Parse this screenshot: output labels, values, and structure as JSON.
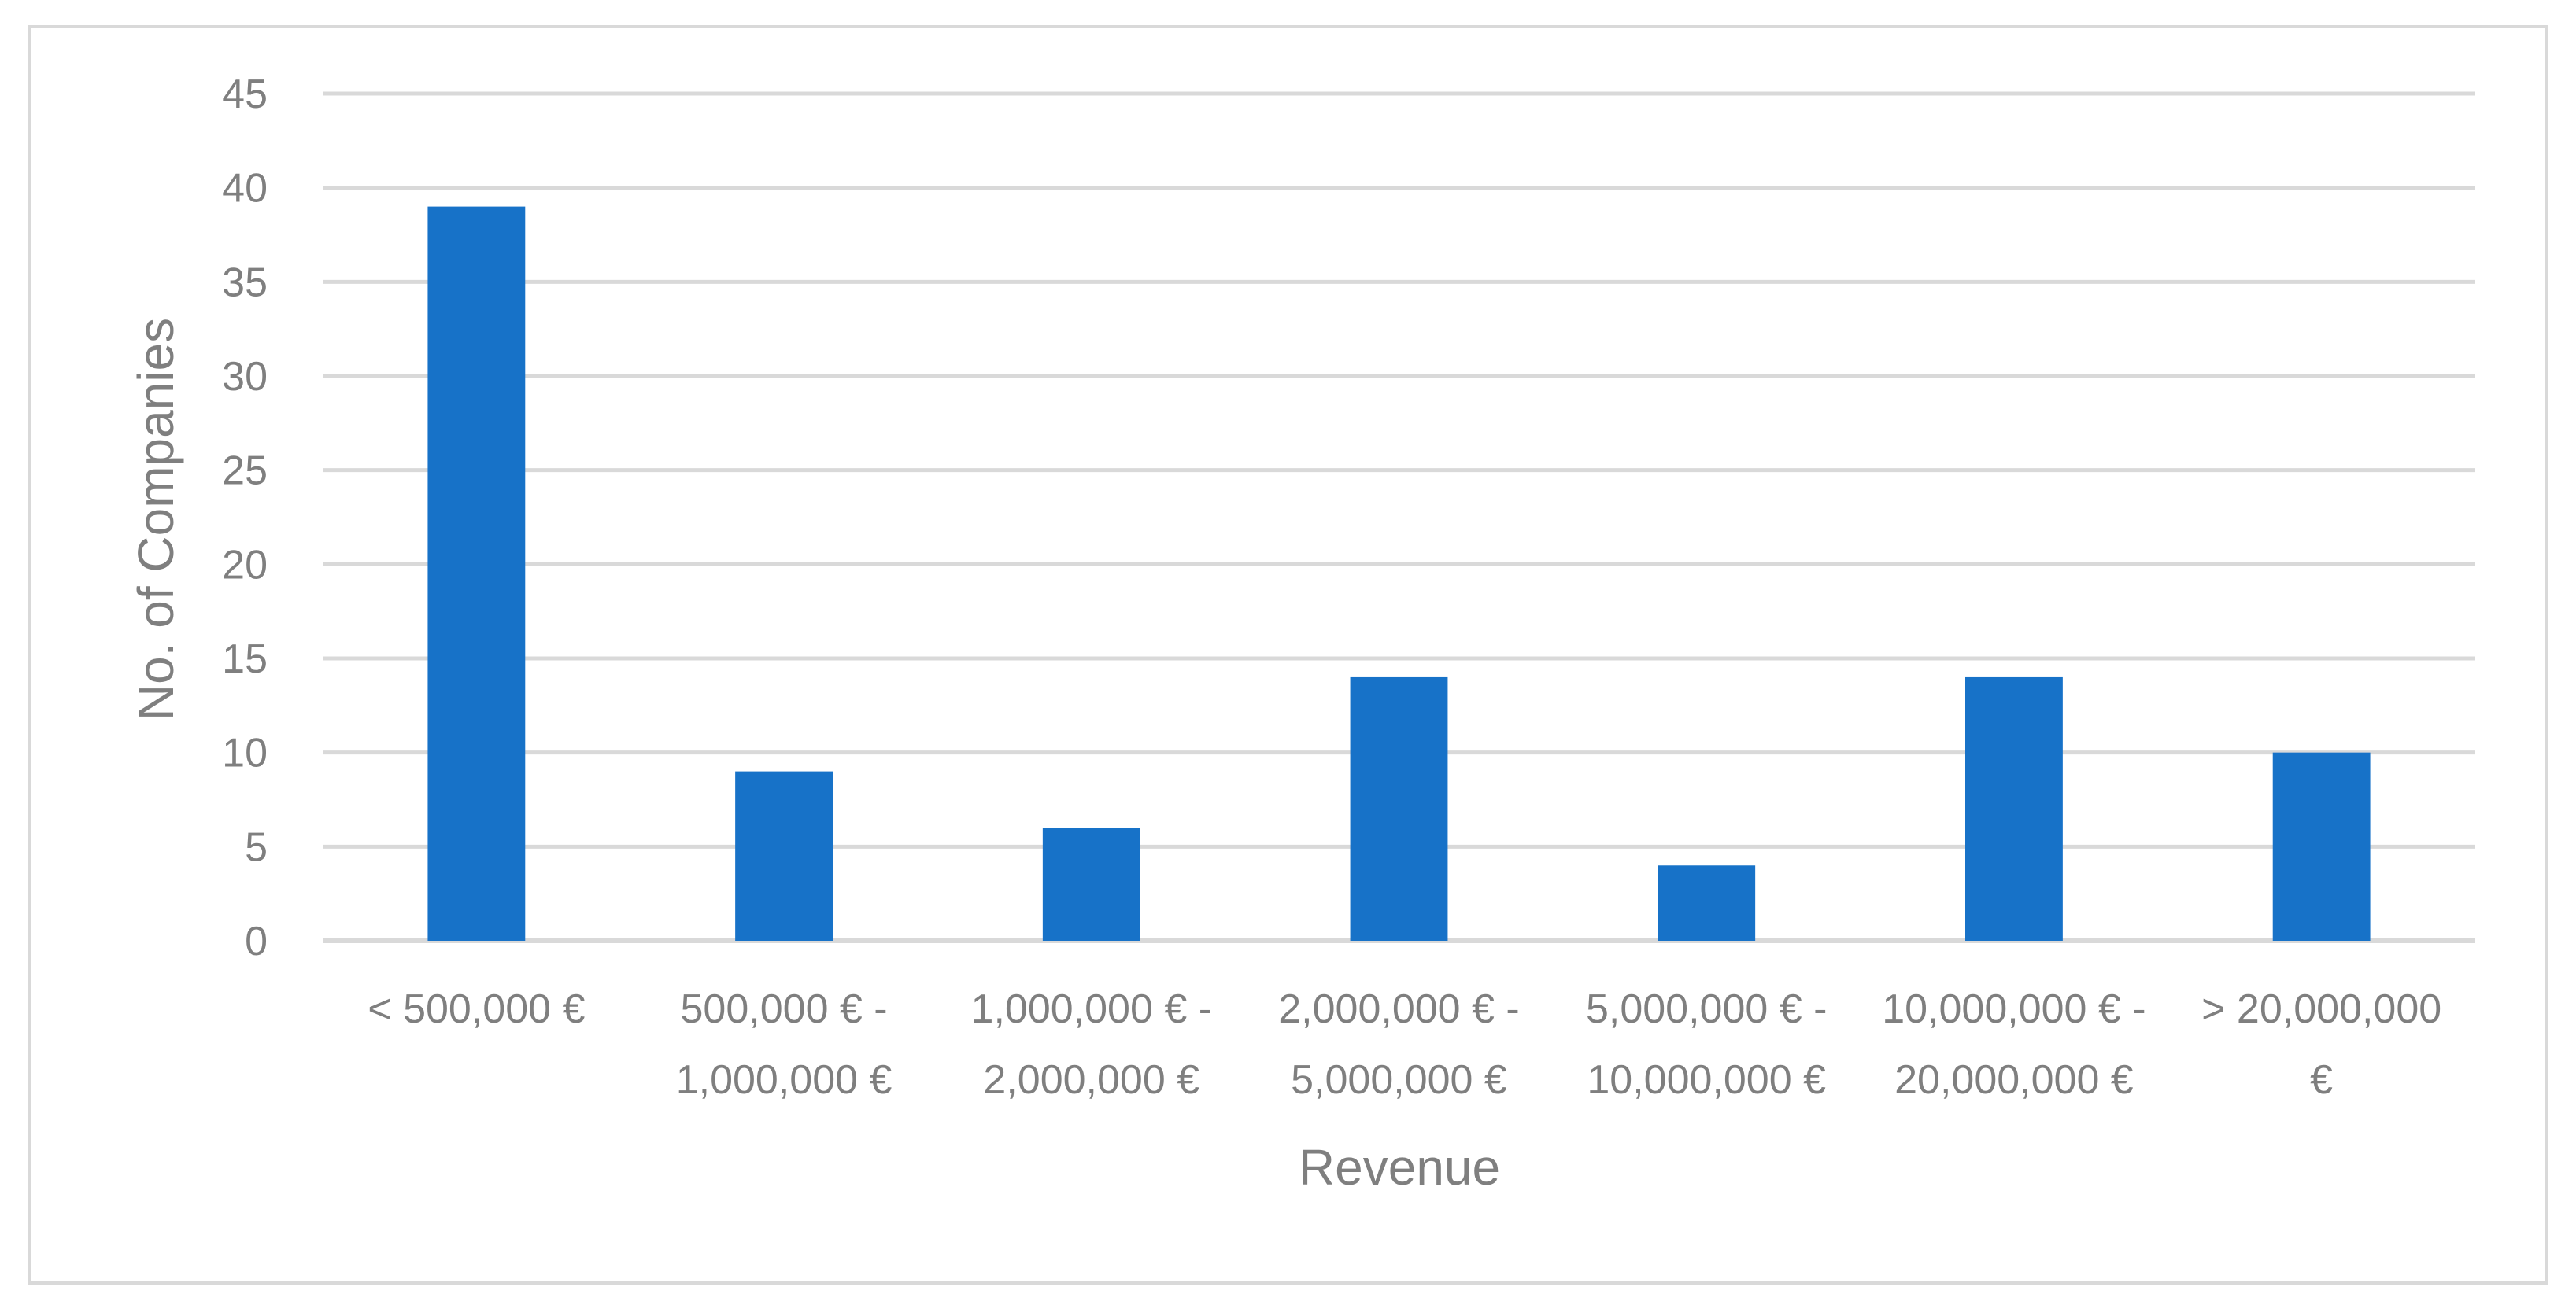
{
  "chart_data": {
    "type": "bar",
    "categories": [
      [
        "< 500,000 €"
      ],
      [
        "500,000 € -",
        "1,000,000 €"
      ],
      [
        "1,000,000 € -",
        "2,000,000 €"
      ],
      [
        "2,000,000 € -",
        "5,000,000 €"
      ],
      [
        "5,000,000 € -",
        "10,000,000 €"
      ],
      [
        "10,000,000 € -",
        "20,000,000 €"
      ],
      [
        "> 20,000,000",
        "€"
      ]
    ],
    "values": [
      39,
      9,
      6,
      14,
      4,
      14,
      10
    ],
    "xlabel": "Revenue",
    "ylabel": "No. of Companies",
    "ylim": [
      0,
      45
    ],
    "yticks": [
      0,
      5,
      10,
      15,
      20,
      25,
      30,
      35,
      40,
      45
    ],
    "grid": true,
    "legend": "none",
    "colors": {
      "bar": "#1772c8",
      "grid": "#d9d9d9",
      "text": "#7f7f7f",
      "frame": "#d9d9d9"
    }
  }
}
